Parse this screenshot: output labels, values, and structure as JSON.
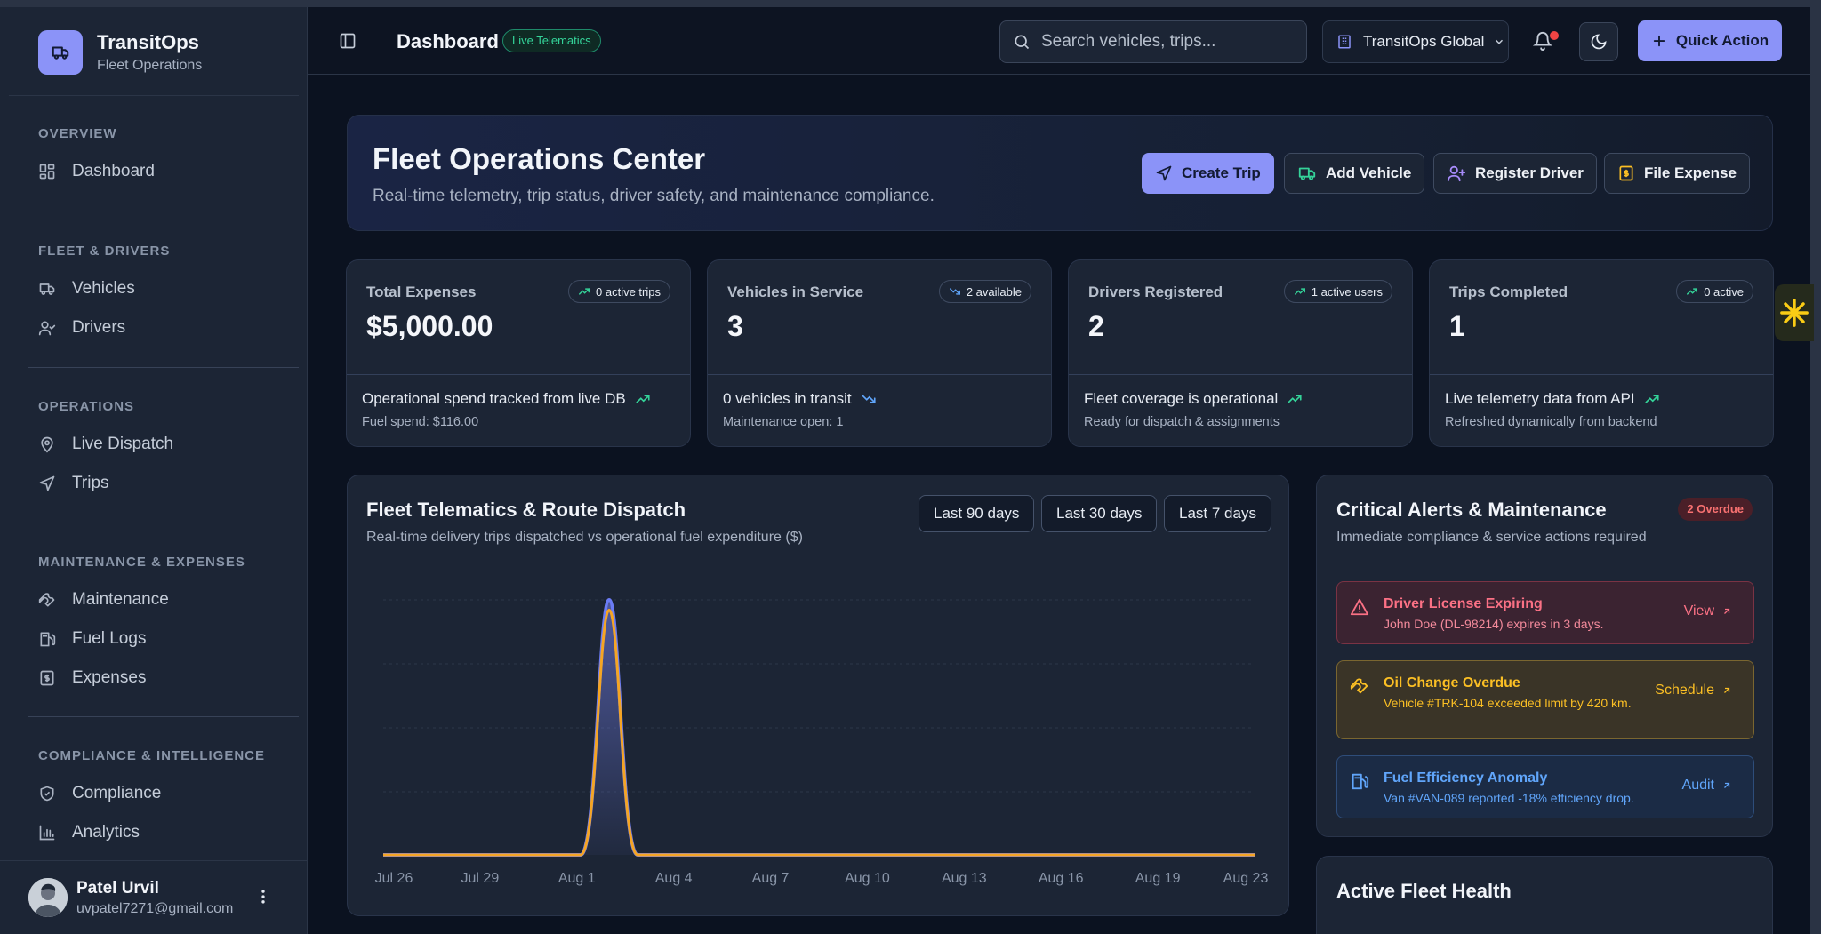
{
  "brand": {
    "title": "TransitOps",
    "subtitle": "Fleet Operations"
  },
  "sidebar": {
    "sections": [
      {
        "heading": "OVERVIEW",
        "items": [
          "Dashboard"
        ]
      },
      {
        "heading": "FLEET & DRIVERS",
        "items": [
          "Vehicles",
          "Drivers"
        ]
      },
      {
        "heading": "OPERATIONS",
        "items": [
          "Live Dispatch",
          "Trips"
        ]
      },
      {
        "heading": "MAINTENANCE & EXPENSES",
        "items": [
          "Maintenance",
          "Fuel Logs",
          "Expenses"
        ]
      },
      {
        "heading": "COMPLIANCE & INTELLIGENCE",
        "items": [
          "Compliance",
          "Analytics"
        ]
      }
    ]
  },
  "user": {
    "name": "Patel Urvil",
    "email": "uvpatel7271@gmail.com"
  },
  "header": {
    "title": "Dashboard",
    "badge": "Live Telematics",
    "search_placeholder": "Search vehicles, trips...",
    "org": "TransitOps Global",
    "quick_action": "Quick Action"
  },
  "hero": {
    "title": "Fleet Operations Center",
    "subtitle": "Real-time telemetry, trip status, driver safety, and maintenance compliance.",
    "buttons": [
      "Create Trip",
      "Add Vehicle",
      "Register Driver",
      "File Expense"
    ]
  },
  "kpis": [
    {
      "label": "Total Expenses",
      "value": "$5,000.00",
      "badge": "0 active trips",
      "foot": "Operational spend tracked from live DB",
      "note": "Fuel spend: $116.00"
    },
    {
      "label": "Vehicles in Service",
      "value": "3",
      "badge": "2 available",
      "foot": "0 vehicles in transit",
      "note": "Maintenance open: 1"
    },
    {
      "label": "Drivers Registered",
      "value": "2",
      "badge": "1 active users",
      "foot": "Fleet coverage is operational",
      "note": "Ready for dispatch & assignments"
    },
    {
      "label": "Trips Completed",
      "value": "1",
      "badge": "0 active",
      "foot": "Live telemetry data from API",
      "note": "Refreshed dynamically from backend"
    }
  ],
  "chart": {
    "title": "Fleet Telematics & Route Dispatch",
    "subtitle": "Real-time delivery trips dispatched vs operational fuel expenditure ($)",
    "ranges": [
      "Last 90 days",
      "Last 30 days",
      "Last 7 days"
    ]
  },
  "chart_data": {
    "type": "area",
    "x": [
      "Jul 26",
      "Jul 29",
      "Aug 1",
      "Aug 4",
      "Aug 7",
      "Aug 10",
      "Aug 13",
      "Aug 16",
      "Aug 19",
      "Aug 23"
    ],
    "series": [
      {
        "values": [
          0,
          0,
          0,
          0,
          0,
          0,
          0,
          0,
          0,
          0
        ],
        "spike_at": "Aug 2",
        "spike": 1.0,
        "color": "#6b7cf5"
      },
      {
        "values": [
          0,
          0,
          0,
          0,
          0,
          0,
          0,
          0,
          0,
          0
        ],
        "spike_at": "Aug 2",
        "spike": 0.96,
        "color": "#f5a524"
      }
    ],
    "grid": true
  },
  "alerts": {
    "title": "Critical Alerts & Maintenance",
    "subtitle": "Immediate compliance & service actions required",
    "badge": "2 Overdue",
    "items": [
      {
        "title": "Driver License Expiring",
        "desc": "John Doe (DL-98214) expires in 3 days.",
        "action": "View"
      },
      {
        "title": "Oil Change Overdue",
        "desc": "Vehicle #TRK-104 exceeded limit by 420 km.",
        "action": "Schedule"
      },
      {
        "title": "Fuel Efficiency Anomaly",
        "desc": "Van #VAN-089 reported -18% efficiency drop.",
        "action": "Audit"
      }
    ]
  },
  "health": {
    "title": "Active Fleet Health"
  },
  "colors": {
    "accent": "#8b93f8",
    "success": "#34d399",
    "danger": "#fb7185",
    "warning": "#fbbf24",
    "info": "#60a5fa"
  }
}
